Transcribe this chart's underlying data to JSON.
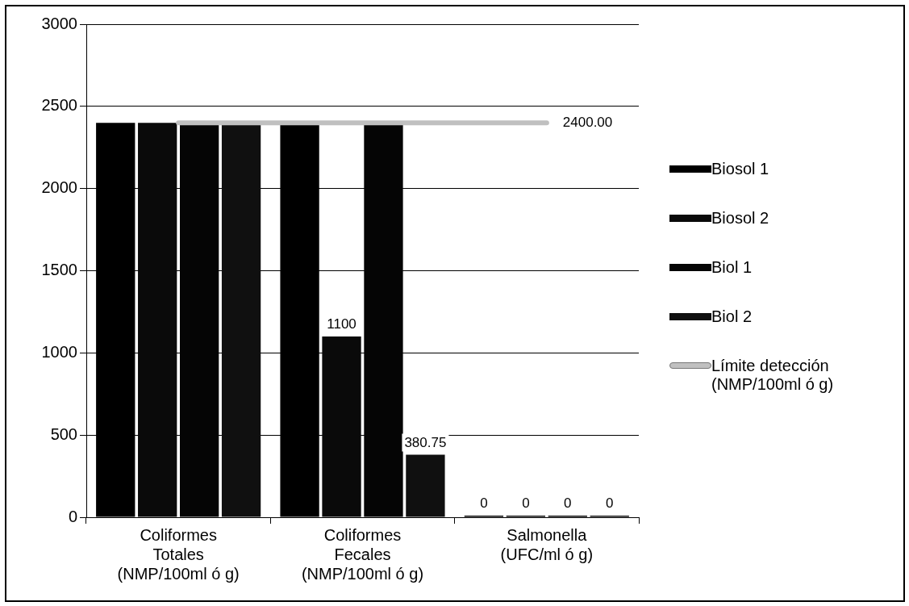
{
  "chart_data": {
    "type": "bar",
    "categories": [
      "Coliformes Totales (NMP/100ml ó g)",
      "Coliformes Fecales (NMP/100ml ó g)",
      "Salmonella (UFC/ml ó g)"
    ],
    "series": [
      {
        "name": "Biosol 1",
        "color": "#000000",
        "values": [
          2400,
          2400,
          0
        ],
        "value_labels": [
          null,
          null,
          "0"
        ]
      },
      {
        "name": "Biosol 2",
        "color": "#0a0a0a",
        "values": [
          2400,
          1100,
          0
        ],
        "value_labels": [
          null,
          "1100",
          "0"
        ]
      },
      {
        "name": "Biol 1",
        "color": "#050505",
        "values": [
          2400,
          2400,
          0
        ],
        "value_labels": [
          null,
          null,
          "0"
        ]
      },
      {
        "name": "Biol 2",
        "color": "#101010",
        "values": [
          2400,
          380.75,
          0
        ],
        "value_labels": [
          null,
          "380.75",
          "0"
        ]
      },
      {
        "name": "Límite detección (NMP/100ml ó g)",
        "type": "line",
        "color": "#c0c0c0",
        "values": [
          2400,
          2400,
          2400
        ],
        "value_labels": [
          null,
          null,
          "2400.00"
        ]
      }
    ],
    "ylim": [
      0,
      3000
    ],
    "yticks": [
      0,
      500,
      1000,
      1500,
      2000,
      2500,
      3000
    ],
    "grid": "y",
    "legend": "right"
  }
}
